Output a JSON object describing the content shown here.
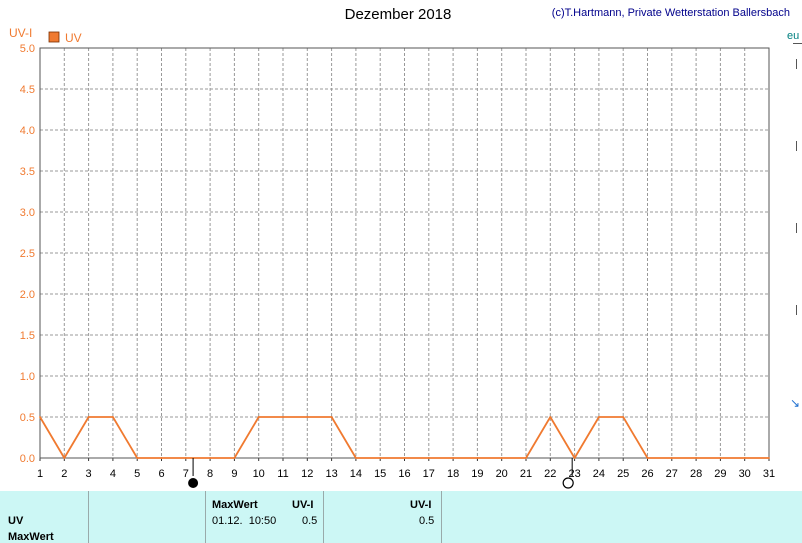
{
  "chart_data": {
    "type": "line",
    "title": "Dezember 2018",
    "copyright": "(c)T.Hartmann, Private Wetterstation Ballersbach",
    "ylabel": "UV-I",
    "ylim": [
      0,
      5.0
    ],
    "yticks": [
      "0.0",
      "0.5",
      "1.0",
      "1.5",
      "2.0",
      "2.5",
      "3.0",
      "3.5",
      "4.0",
      "4.5",
      "5.0"
    ],
    "xlim": [
      1,
      31
    ],
    "xticks": [
      "1",
      "2",
      "3",
      "4",
      "5",
      "6",
      "7",
      "8",
      "9",
      "10",
      "11",
      "12",
      "13",
      "14",
      "15",
      "16",
      "17",
      "18",
      "19",
      "20",
      "21",
      "22",
      "23",
      "24",
      "25",
      "26",
      "27",
      "28",
      "29",
      "30",
      "31"
    ],
    "grid": true,
    "legend_position": "top-left",
    "series": [
      {
        "name": "UV",
        "color": "#f07a30",
        "x": [
          1,
          2,
          3,
          4,
          5,
          6,
          7,
          8,
          9,
          10,
          11,
          12,
          13,
          14,
          15,
          16,
          17,
          18,
          19,
          20,
          21,
          22,
          23,
          24,
          25,
          26,
          27,
          28,
          29,
          30,
          31
        ],
        "y": [
          0.5,
          0.0,
          0.5,
          0.5,
          0.0,
          0.0,
          0.0,
          0.0,
          0.0,
          0.5,
          0.5,
          0.5,
          0.5,
          0.0,
          0.0,
          0.0,
          0.0,
          0.0,
          0.0,
          0.0,
          0.0,
          0.5,
          0.0,
          0.5,
          0.5,
          0.0,
          0.0,
          0.0,
          0.0,
          0.0,
          0.0
        ]
      }
    ],
    "moon_phases": [
      {
        "day": 7.3,
        "phase": "new-moon-icon"
      },
      {
        "day": 22.9,
        "phase": "full-moon-icon"
      }
    ]
  },
  "side": {
    "label": "eu"
  },
  "table": {
    "row1_label": "UV",
    "row2_label": "MaxWert",
    "col2_header": "MaxWert",
    "col2_value": "01.12.  10:50",
    "col3_header": "UV-I",
    "col3_value": "0.5",
    "col4_header": "UV-I",
    "col4_value": "0.5"
  }
}
